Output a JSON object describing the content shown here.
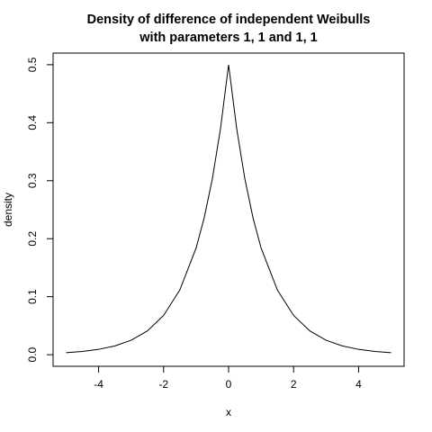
{
  "chart_data": {
    "type": "line",
    "title_line1": "Density of difference of independent Weibulls",
    "title_line2": "with parameters 1, 1 and 1, 1",
    "xlabel": "x",
    "ylabel": "density",
    "xlim": [
      -5.4,
      5.4
    ],
    "ylim": [
      -0.02,
      0.52
    ],
    "xticks": [
      -4,
      -2,
      0,
      2,
      4
    ],
    "xtick_labels": [
      "-4",
      "-2",
      "0",
      "2",
      "4"
    ],
    "yticks": [
      0.0,
      0.1,
      0.2,
      0.3,
      0.4,
      0.5
    ],
    "ytick_labels": [
      "0.0",
      "0.1",
      "0.2",
      "0.3",
      "0.4",
      "0.5"
    ],
    "grid": false,
    "series": [
      {
        "x": [
          -5,
          -4.5,
          -4,
          -3.5,
          -3,
          -2.5,
          -2,
          -1.5,
          -1,
          -0.75,
          -0.5,
          -0.25,
          0,
          0.25,
          0.5,
          0.75,
          1,
          1.5,
          2,
          2.5,
          3,
          3.5,
          4,
          4.5,
          5
        ],
        "y": [
          0.0034,
          0.0056,
          0.0092,
          0.0151,
          0.0249,
          0.041,
          0.0677,
          0.1116,
          0.1839,
          0.2362,
          0.3033,
          0.3894,
          0.5,
          0.3894,
          0.3033,
          0.2362,
          0.1839,
          0.1116,
          0.0677,
          0.041,
          0.0249,
          0.0151,
          0.0092,
          0.0056,
          0.0034
        ]
      }
    ]
  }
}
